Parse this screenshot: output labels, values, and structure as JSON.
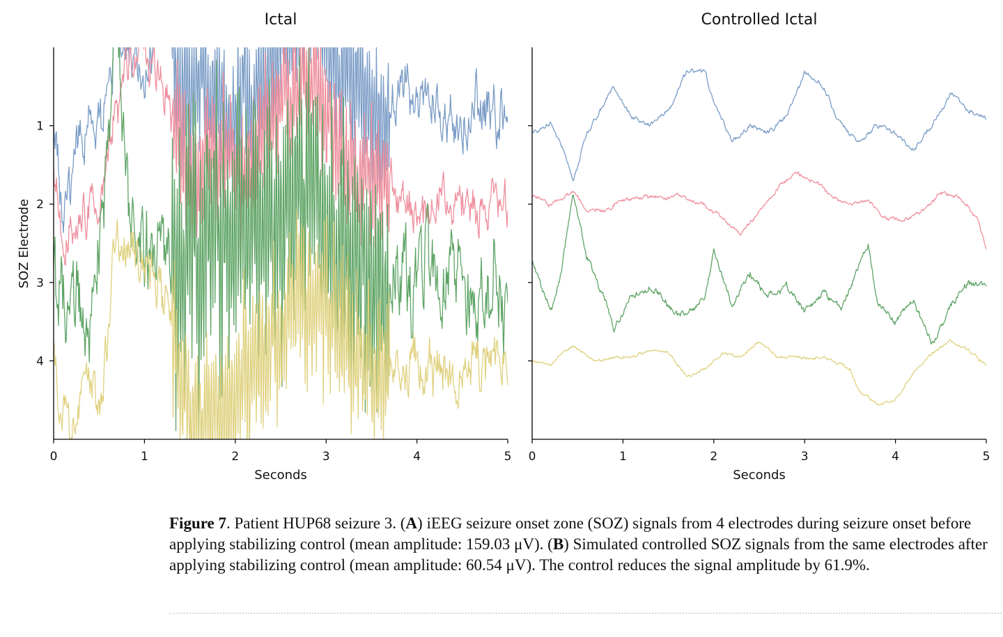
{
  "chart_data": [
    {
      "type": "line",
      "title": "Ictal",
      "xlabel": "Seconds",
      "ylabel": "SOZ Electrode",
      "xlim": [
        0,
        5
      ],
      "ylim": [
        5,
        0
      ],
      "xticks": [
        "0",
        "1",
        "2",
        "3",
        "4",
        "5"
      ],
      "yticks": [
        "1",
        "2",
        "3",
        "4"
      ],
      "grid": false,
      "series": [
        {
          "electrode": 1,
          "color": "#7a9cc6",
          "baseline": 1,
          "amplitude": 0.42,
          "noise": 0.55,
          "points": [
            [
              0,
              0.95
            ],
            [
              0.1,
              2.2
            ],
            [
              0.3,
              1.1
            ],
            [
              0.5,
              1.0
            ],
            [
              0.6,
              0.3
            ],
            [
              0.7,
              -0.5
            ],
            [
              0.9,
              0.3
            ],
            [
              1.0,
              0.5
            ],
            [
              1.2,
              -0.3
            ],
            [
              1.4,
              0.6
            ],
            [
              1.6,
              0.4
            ],
            [
              1.8,
              0.4
            ],
            [
              2.0,
              0.8
            ],
            [
              2.3,
              0.4
            ],
            [
              2.6,
              -0.3
            ],
            [
              2.9,
              -0.8
            ],
            [
              3.1,
              0.3
            ],
            [
              3.4,
              0.8
            ],
            [
              3.7,
              0.9
            ],
            [
              4.0,
              0.6
            ],
            [
              4.3,
              1.0
            ],
            [
              4.6,
              0.9
            ],
            [
              5.0,
              0.9
            ]
          ]
        },
        {
          "electrode": 2,
          "color": "#ee8e9c",
          "baseline": 2,
          "amplitude": 0.45,
          "noise": 0.45,
          "points": [
            [
              0,
              1.5
            ],
            [
              0.1,
              2.7
            ],
            [
              0.3,
              2.0
            ],
            [
              0.5,
              2.4
            ],
            [
              0.6,
              1.3
            ],
            [
              0.8,
              0.3
            ],
            [
              1.0,
              0.0
            ],
            [
              1.2,
              0.1
            ],
            [
              1.3,
              0.8
            ],
            [
              1.5,
              1.5
            ],
            [
              1.8,
              1.4
            ],
            [
              2.0,
              1.6
            ],
            [
              2.3,
              1.2
            ],
            [
              2.6,
              0.5
            ],
            [
              2.9,
              0.3
            ],
            [
              3.1,
              1.2
            ],
            [
              3.4,
              1.8
            ],
            [
              3.7,
              1.6
            ],
            [
              4.0,
              2.1
            ],
            [
              4.3,
              1.7
            ],
            [
              4.6,
              2.0
            ],
            [
              5.0,
              1.9
            ]
          ]
        },
        {
          "electrode": 3,
          "color": "#5ea465",
          "baseline": 3,
          "amplitude": 0.5,
          "noise": 0.9,
          "points": [
            [
              0,
              2.5
            ],
            [
              0.1,
              3.3
            ],
            [
              0.3,
              3.4
            ],
            [
              0.4,
              3.8
            ],
            [
              0.6,
              1.5
            ],
            [
              0.7,
              0.2
            ],
            [
              0.9,
              2.4
            ],
            [
              1.0,
              2.6
            ],
            [
              1.2,
              2.4
            ],
            [
              1.3,
              3.0
            ],
            [
              1.5,
              2.6
            ],
            [
              1.8,
              2.0
            ],
            [
              2.0,
              2.4
            ],
            [
              2.3,
              2.0
            ],
            [
              2.6,
              1.8
            ],
            [
              2.9,
              1.6
            ],
            [
              3.1,
              2.6
            ],
            [
              3.4,
              2.8
            ],
            [
              3.7,
              2.7
            ],
            [
              4.0,
              3.0
            ],
            [
              4.3,
              2.9
            ],
            [
              4.6,
              3.0
            ],
            [
              5.0,
              3.1
            ]
          ]
        },
        {
          "electrode": 4,
          "color": "#dfd17f",
          "baseline": 4,
          "amplitude": 0.5,
          "noise": 0.55,
          "points": [
            [
              0,
              3.6
            ],
            [
              0.1,
              4.6
            ],
            [
              0.2,
              4.9
            ],
            [
              0.4,
              4.5
            ],
            [
              0.5,
              4.8
            ],
            [
              0.7,
              2.4
            ],
            [
              0.9,
              2.6
            ],
            [
              1.0,
              2.8
            ],
            [
              1.2,
              3.2
            ],
            [
              1.4,
              4.1
            ],
            [
              1.6,
              4.6
            ],
            [
              1.9,
              4.6
            ],
            [
              2.1,
              4.2
            ],
            [
              2.4,
              3.8
            ],
            [
              2.7,
              3.4
            ],
            [
              3.0,
              3.3
            ],
            [
              3.3,
              4.0
            ],
            [
              3.6,
              4.1
            ],
            [
              3.9,
              4.2
            ],
            [
              4.2,
              4.1
            ],
            [
              4.6,
              4.0
            ],
            [
              5.0,
              3.9
            ]
          ]
        }
      ]
    },
    {
      "type": "line",
      "title": "Controlled Ictal",
      "xlabel": "Seconds",
      "xlim": [
        0,
        5
      ],
      "ylim": [
        5,
        0
      ],
      "xticks": [
        "0",
        "1",
        "2",
        "3",
        "4",
        "5"
      ],
      "grid": false,
      "series": [
        {
          "electrode": 1,
          "color": "#7a9cc6",
          "baseline": 1,
          "noise": 0.05,
          "points": [
            [
              0,
              1.1
            ],
            [
              0.2,
              0.95
            ],
            [
              0.35,
              1.3
            ],
            [
              0.45,
              1.7
            ],
            [
              0.6,
              1.1
            ],
            [
              0.9,
              0.5
            ],
            [
              1.1,
              0.9
            ],
            [
              1.3,
              1.0
            ],
            [
              1.5,
              0.8
            ],
            [
              1.7,
              0.3
            ],
            [
              1.9,
              0.3
            ],
            [
              2.0,
              0.7
            ],
            [
              2.2,
              1.2
            ],
            [
              2.4,
              1.0
            ],
            [
              2.6,
              1.1
            ],
            [
              2.8,
              0.9
            ],
            [
              3.0,
              0.3
            ],
            [
              3.2,
              0.5
            ],
            [
              3.4,
              1.0
            ],
            [
              3.6,
              1.2
            ],
            [
              3.8,
              1.0
            ],
            [
              4.0,
              1.1
            ],
            [
              4.2,
              1.3
            ],
            [
              4.4,
              1.0
            ],
            [
              4.6,
              0.6
            ],
            [
              4.8,
              0.8
            ],
            [
              5.0,
              0.9
            ]
          ]
        },
        {
          "electrode": 2,
          "color": "#ee8e9c",
          "baseline": 2,
          "noise": 0.04,
          "points": [
            [
              0,
              1.9
            ],
            [
              0.2,
              2.0
            ],
            [
              0.45,
              1.85
            ],
            [
              0.6,
              2.1
            ],
            [
              0.8,
              2.1
            ],
            [
              1.0,
              1.95
            ],
            [
              1.3,
              1.9
            ],
            [
              1.6,
              1.9
            ],
            [
              1.9,
              2.0
            ],
            [
              2.1,
              2.2
            ],
            [
              2.3,
              2.4
            ],
            [
              2.5,
              2.1
            ],
            [
              2.7,
              1.8
            ],
            [
              2.9,
              1.6
            ],
            [
              3.1,
              1.7
            ],
            [
              3.3,
              1.9
            ],
            [
              3.5,
              2.0
            ],
            [
              3.7,
              1.95
            ],
            [
              3.9,
              2.2
            ],
            [
              4.1,
              2.2
            ],
            [
              4.3,
              2.1
            ],
            [
              4.5,
              1.85
            ],
            [
              4.7,
              1.9
            ],
            [
              4.9,
              2.2
            ],
            [
              5.0,
              2.6
            ]
          ]
        },
        {
          "electrode": 3,
          "color": "#5ea465",
          "baseline": 3,
          "noise": 0.07,
          "points": [
            [
              0,
              2.7
            ],
            [
              0.2,
              3.4
            ],
            [
              0.3,
              3.0
            ],
            [
              0.45,
              1.9
            ],
            [
              0.6,
              2.7
            ],
            [
              0.8,
              3.2
            ],
            [
              0.9,
              3.6
            ],
            [
              1.1,
              3.2
            ],
            [
              1.3,
              3.1
            ],
            [
              1.5,
              3.3
            ],
            [
              1.7,
              3.4
            ],
            [
              1.9,
              3.2
            ],
            [
              2.0,
              2.6
            ],
            [
              2.2,
              3.3
            ],
            [
              2.4,
              2.9
            ],
            [
              2.6,
              3.2
            ],
            [
              2.8,
              3.0
            ],
            [
              3.0,
              3.4
            ],
            [
              3.2,
              3.1
            ],
            [
              3.4,
              3.3
            ],
            [
              3.6,
              2.8
            ],
            [
              3.7,
              2.5
            ],
            [
              3.8,
              3.3
            ],
            [
              4.0,
              3.5
            ],
            [
              4.2,
              3.2
            ],
            [
              4.4,
              3.8
            ],
            [
              4.6,
              3.3
            ],
            [
              4.8,
              3.0
            ],
            [
              5.0,
              3.1
            ]
          ]
        },
        {
          "electrode": 4,
          "color": "#dfd17f",
          "baseline": 4,
          "noise": 0.03,
          "points": [
            [
              0,
              4.0
            ],
            [
              0.2,
              4.05
            ],
            [
              0.45,
              3.8
            ],
            [
              0.7,
              4.0
            ],
            [
              0.9,
              3.95
            ],
            [
              1.1,
              3.95
            ],
            [
              1.3,
              3.85
            ],
            [
              1.5,
              3.9
            ],
            [
              1.7,
              4.2
            ],
            [
              1.9,
              4.1
            ],
            [
              2.1,
              3.9
            ],
            [
              2.3,
              3.95
            ],
            [
              2.5,
              3.75
            ],
            [
              2.7,
              3.95
            ],
            [
              2.9,
              3.95
            ],
            [
              3.1,
              3.95
            ],
            [
              3.3,
              4.0
            ],
            [
              3.5,
              4.1
            ],
            [
              3.6,
              4.4
            ],
            [
              3.8,
              4.55
            ],
            [
              4.0,
              4.5
            ],
            [
              4.2,
              4.15
            ],
            [
              4.4,
              3.9
            ],
            [
              4.6,
              3.75
            ],
            [
              4.8,
              3.85
            ],
            [
              5.0,
              4.05
            ]
          ]
        }
      ]
    }
  ],
  "caption": {
    "figure_label": "Figure 7",
    "sep": ".  Patient HUP68 seizure 3. (",
    "part_a": "A",
    "text_a": ") iEEG seizure onset zone (SOZ) signals from 4 electrodes during seizure onset before applying stabilizing control (mean amplitude: 159.03 μV). (",
    "part_b": "B",
    "text_b": ") Simulated controlled SOZ signals from the same electrodes after applying stabilizing control (mean amplitude: 60.54 μV). The control reduces the signal amplitude by 61.9%."
  }
}
